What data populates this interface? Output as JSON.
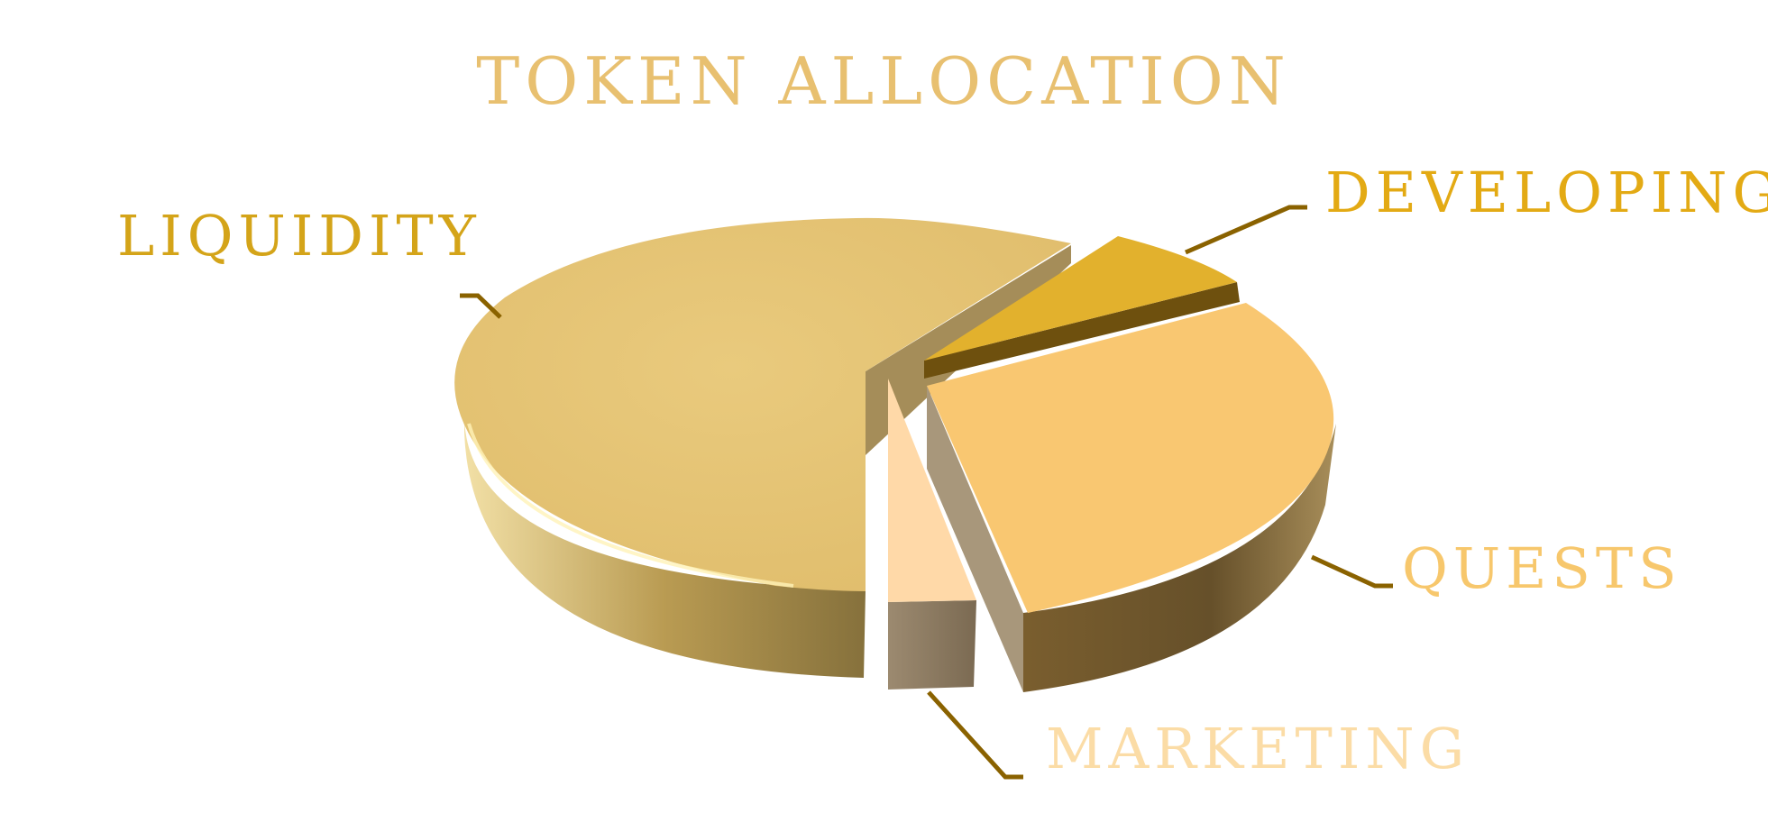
{
  "chart_data": {
    "type": "pie",
    "title": "TOKEN ALLOCATION",
    "legend": "none",
    "style": "3d-exploded",
    "slices": [
      {
        "label": "LIQUIDITY",
        "value": 65,
        "color": "#E5C46E",
        "label_color": "#D4A419"
      },
      {
        "label": "DEVELOPING",
        "value": 8,
        "color": "#E2B12D",
        "label_color": "#E3AA14"
      },
      {
        "label": "QUESTS",
        "value": 21,
        "color": "#F9C771",
        "label_color": "#F7C76C"
      },
      {
        "label": "MARKETING",
        "value": 6,
        "color": "#FFD9A8",
        "label_color": "#FBDCA6"
      }
    ]
  },
  "colors": {
    "title": "#E8C070",
    "leader": "#8A6200",
    "background": "#FFFFFF"
  }
}
